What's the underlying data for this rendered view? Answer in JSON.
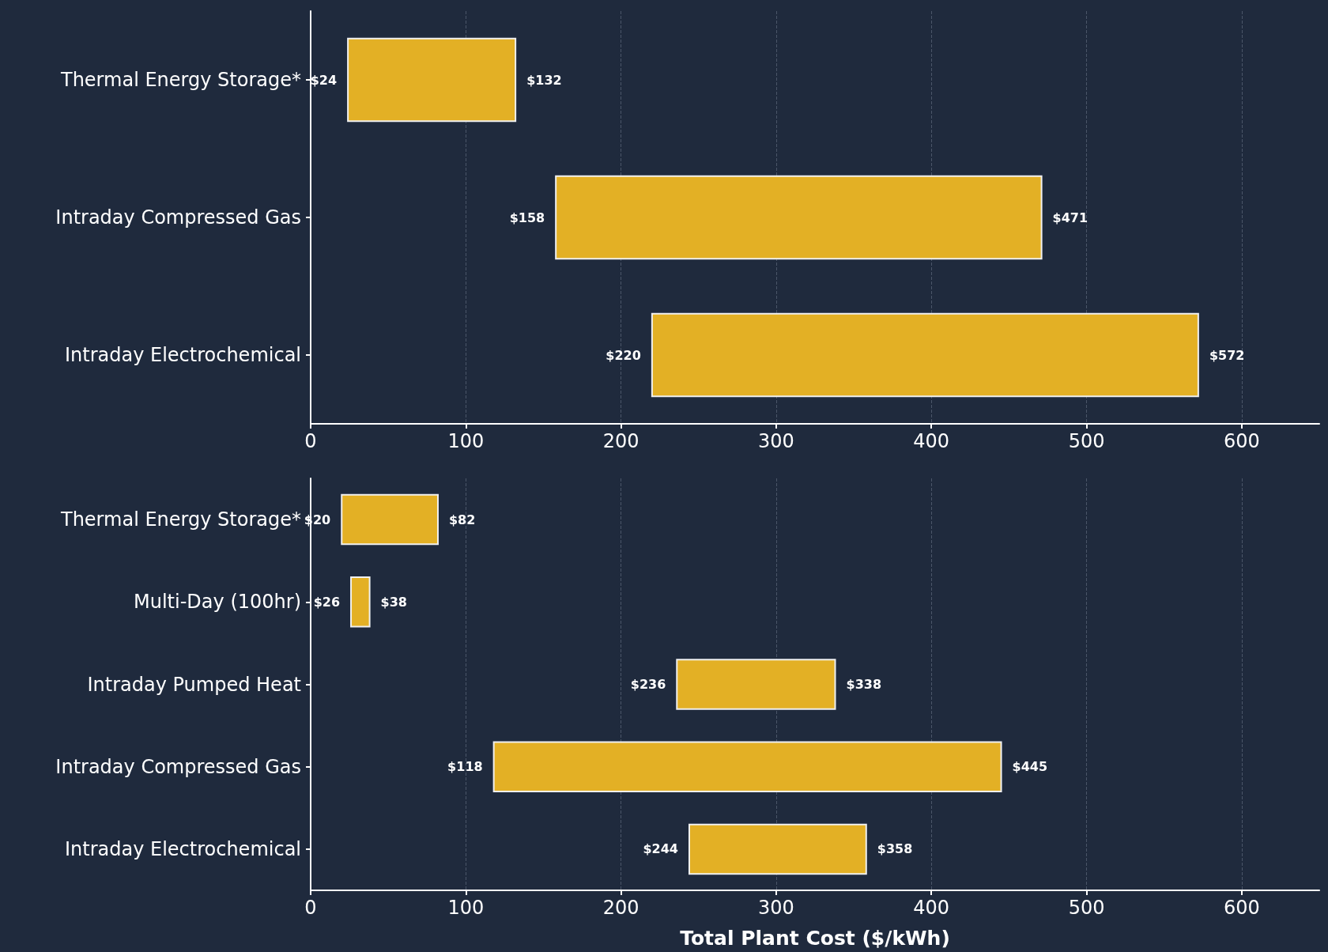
{
  "chart_data": [
    {
      "type": "bar",
      "orientation": "horizontal",
      "categories": [
        "Thermal Energy Storage*",
        "Intraday Compressed Gas",
        "Intraday Electrochemical"
      ],
      "base": [
        24,
        158,
        220
      ],
      "values": [
        108,
        313,
        352
      ],
      "color": "#e3b025",
      "xlim": [
        0,
        650
      ],
      "xticks": [
        0,
        100,
        200,
        300,
        400,
        500,
        600
      ],
      "grid": "x",
      "annotations": [
        {
          "text": "$24",
          "x": 24,
          "y": "Thermal Energy Storage*"
        },
        {
          "text": "$132",
          "x": 132,
          "y": "Thermal Energy Storage*"
        },
        {
          "text": "$158",
          "x": 158,
          "y": "Intraday Compressed Gas"
        },
        {
          "text": "$471",
          "x": 471,
          "y": "Intraday Compressed Gas"
        },
        {
          "text": "$220",
          "x": 220,
          "y": "Intraday Electrochemical"
        },
        {
          "text": "$572",
          "x": 572,
          "y": "Intraday Electrochemical"
        }
      ]
    },
    {
      "type": "bar",
      "orientation": "horizontal",
      "categories": [
        "Thermal Energy Storage*",
        "Multi-Day (100hr)",
        "Intraday Pumped Heat",
        "Intraday Compressed Gas",
        "Intraday Electrochemical"
      ],
      "base": [
        20,
        26,
        236,
        118,
        244
      ],
      "values": [
        62,
        12,
        102,
        327,
        114
      ],
      "color": "#e3b025",
      "xlim": [
        0,
        650
      ],
      "xticks": [
        0,
        100,
        200,
        300,
        400,
        500,
        600
      ],
      "grid": "x",
      "xlabel": "Total Plant Cost ($/kWh)",
      "annotations": [
        {
          "text": "$20",
          "x": 20,
          "y": "Thermal Energy Storage*"
        },
        {
          "text": "$82",
          "x": 82,
          "y": "Thermal Energy Storage*"
        },
        {
          "text": "$26",
          "x": 26,
          "y": "Multi-Day (100hr)"
        },
        {
          "text": "$38",
          "x": 38,
          "y": "Multi-Day (100hr)"
        },
        {
          "text": "$236",
          "x": 236,
          "y": "Intraday Pumped Heat"
        },
        {
          "text": "$338",
          "x": 338,
          "y": "Intraday Pumped Heat"
        },
        {
          "text": "$118",
          "x": 118,
          "y": "Intraday Compressed Gas"
        },
        {
          "text": "$445",
          "x": 445,
          "y": "Intraday Compressed Gas"
        },
        {
          "text": "$244",
          "x": 244,
          "y": "Intraday Electrochemical"
        },
        {
          "text": "$358",
          "x": 358,
          "y": "Intraday Electrochemical"
        }
      ]
    }
  ]
}
